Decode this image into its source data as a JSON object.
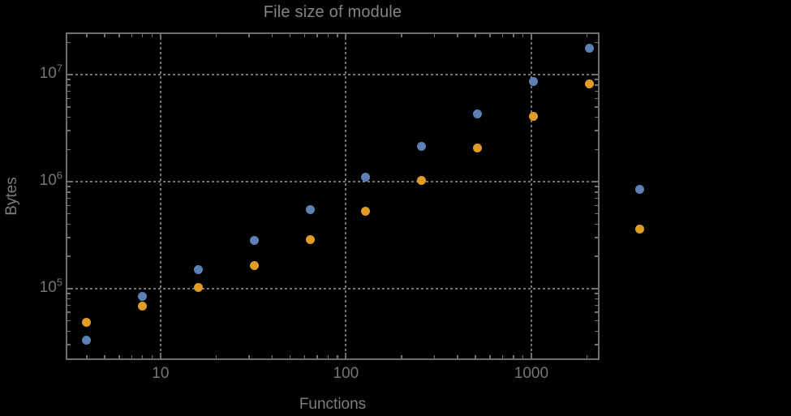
{
  "title": "File size of module",
  "colors": {
    "background": "#000000",
    "frame": "#6f6f6f",
    "gridlines": "#737373",
    "tick_text": "#757575",
    "title_text": "#858585",
    "series_blue": "#5e81b5",
    "series_orange": "#e19c24"
  },
  "chart_data": {
    "type": "scatter",
    "title": "File size of module",
    "xlabel": "Functions",
    "ylabel": "Bytes",
    "x_scale": "log",
    "y_scale": "log",
    "xlim": [
      3.08,
      2333
    ],
    "ylim": [
      21500,
      24800000
    ],
    "grid": {
      "style": "dotted",
      "x_values": [
        10,
        100,
        1000
      ],
      "y_values": [
        100000,
        1000000,
        10000000
      ]
    },
    "x_ticks": [
      {
        "value": 10,
        "label": "10"
      },
      {
        "value": 100,
        "label": "100"
      },
      {
        "value": 1000,
        "label": "1000"
      }
    ],
    "y_ticks": [
      {
        "value": 100000,
        "base": "10",
        "exp": "5"
      },
      {
        "value": 1000000,
        "base": "10",
        "exp": "6"
      },
      {
        "value": 10000000,
        "base": "10",
        "exp": "7"
      }
    ],
    "legend": "none",
    "marker_size_px": 11,
    "series": [
      {
        "id": "blue",
        "color": "#5e81b5",
        "x": [
          4,
          8,
          16,
          32,
          64,
          128,
          256,
          512,
          1024,
          2048,
          3850
        ],
        "y": [
          33000,
          84000,
          150000,
          280000,
          550000,
          1100000,
          2150000,
          4300000,
          8600000,
          17500000,
          840000
        ]
      },
      {
        "id": "orange",
        "color": "#e19c24",
        "x": [
          4,
          8,
          16,
          32,
          64,
          128,
          256,
          512,
          1024,
          2048,
          3850
        ],
        "y": [
          48000,
          69000,
          103000,
          165000,
          285000,
          530000,
          1030000,
          2050000,
          4100000,
          8200000,
          360000
        ]
      }
    ]
  }
}
